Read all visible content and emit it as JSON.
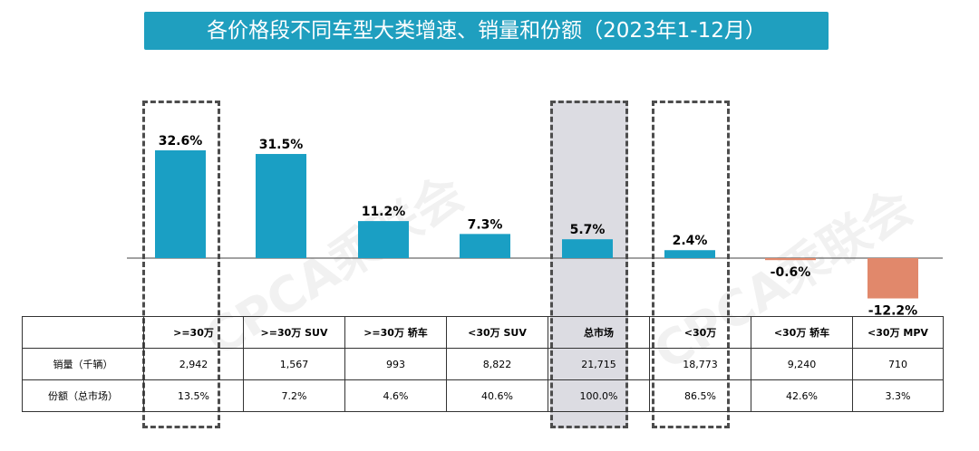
{
  "title": "各价格段不同车型大类增速、销量和份额（2023年1-12月）",
  "watermark": "CPCA乘联会",
  "colors": {
    "title_bg": "#1f9fbf",
    "positive_bar": "#1a9fc4",
    "negative_bar": "#e1886b",
    "highlight_fill": "#dcdce2"
  },
  "chart_data": {
    "type": "bar",
    "categories": [
      ">=30万",
      ">=30万 SUV",
      ">=30万 轿车",
      "<30万 SUV",
      "总市场",
      "<30万",
      "<30万 轿车",
      "<30万 MPV"
    ],
    "values": [
      32.6,
      31.5,
      11.2,
      7.3,
      5.7,
      2.4,
      -0.6,
      -12.2
    ],
    "labels": [
      "32.6%",
      "31.5%",
      "11.2%",
      "7.3%",
      "5.7%",
      "2.4%",
      "-0.6%",
      "-12.2%"
    ],
    "ylabel": "",
    "grid": false,
    "highlighted_categories": [
      ">=30万",
      "总市场",
      "<30万"
    ]
  },
  "table": {
    "headers": [
      "",
      ">=30万",
      ">=30万 SUV",
      ">=30万 轿车",
      "<30万 SUV",
      "总市场",
      "<30万",
      "<30万 轿车",
      "<30万 MPV"
    ],
    "rows": [
      {
        "label": "销量（千辆）",
        "values": [
          "2,942",
          "1,567",
          "993",
          "8,822",
          "21,715",
          "18,773",
          "9,240",
          "710"
        ]
      },
      {
        "label": "份额（总市场）",
        "values": [
          "13.5%",
          "7.2%",
          "4.6%",
          "40.6%",
          "100.0%",
          "86.5%",
          "42.6%",
          "3.3%"
        ]
      }
    ]
  }
}
